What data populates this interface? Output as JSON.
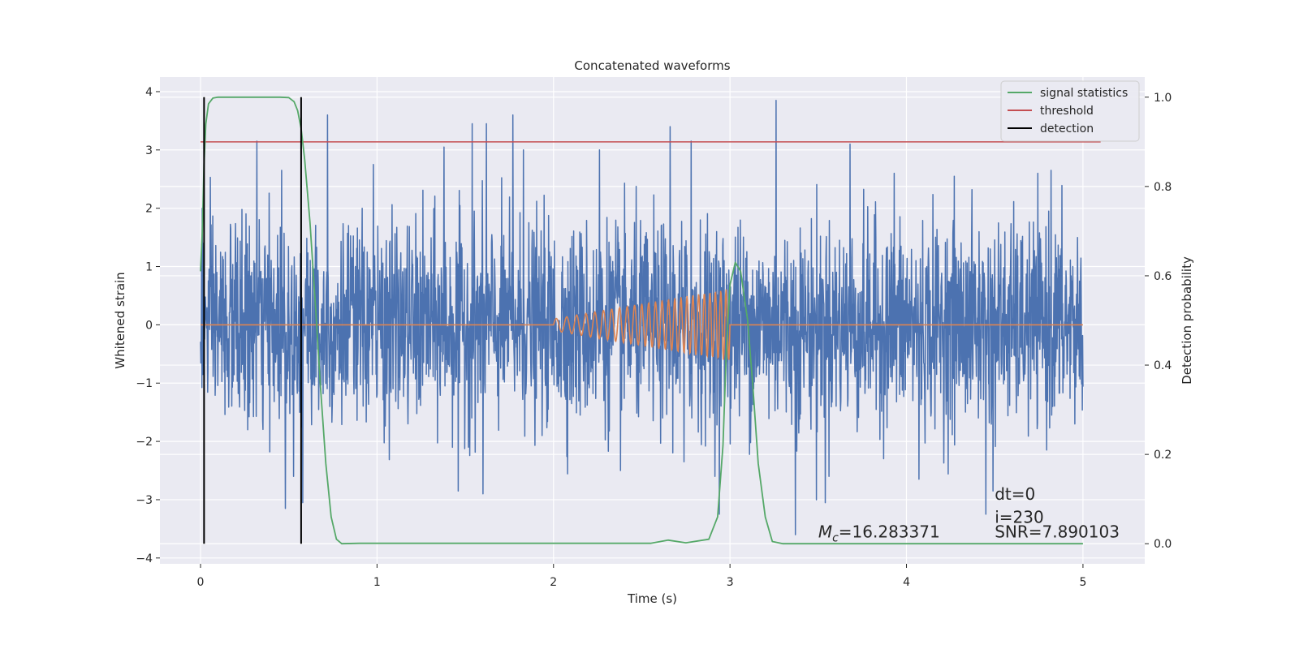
{
  "chart_data": {
    "type": "line",
    "title": "Concatenated waveforms",
    "xlabel": "Time (s)",
    "ylabel": "Whitened strain",
    "y2label": "Detection probability",
    "xlim": [
      -0.23,
      5.35
    ],
    "ylim": [
      -4.1,
      4.25
    ],
    "y2lim": [
      -0.045,
      1.045
    ],
    "x_ticks": [
      0,
      1,
      2,
      3,
      4,
      5
    ],
    "x_tick_labels": [
      "0",
      "1",
      "2",
      "3",
      "4",
      "5"
    ],
    "y_ticks": [
      4,
      3,
      2,
      1,
      0,
      -1,
      -2,
      -3,
      -4
    ],
    "y_tick_labels": [
      "4",
      "3",
      "2",
      "1",
      "0",
      "−1",
      "−2",
      "−3",
      "−4"
    ],
    "y2_ticks": [
      1.0,
      0.8,
      0.6,
      0.4,
      0.2,
      0.0
    ],
    "y2_tick_labels": [
      "1.0",
      "0.8",
      "0.6",
      "0.4",
      "0.2",
      "0.0"
    ],
    "grid": true,
    "legend_position": "top-right",
    "legend": [
      {
        "label": "signal statistics",
        "color": "#55a868"
      },
      {
        "label": "threshold",
        "color": "#c44e52"
      },
      {
        "label": "detection",
        "color": "#000000"
      }
    ],
    "series": [
      {
        "key": "strain",
        "axis": "left",
        "color": "#4c72b0",
        "x_range": [
          0,
          5
        ],
        "noise_sigma": 0.85,
        "sample_count": 2600,
        "spike_points": [
          [
            0.01,
            2.0
          ],
          [
            0.32,
            3.15
          ],
          [
            0.46,
            2.65
          ],
          [
            0.48,
            -3.15
          ],
          [
            0.72,
            3.6
          ],
          [
            0.98,
            2.75
          ],
          [
            0.58,
            -3.05
          ],
          [
            1.38,
            3.05
          ],
          [
            1.54,
            3.45
          ],
          [
            1.62,
            3.45
          ],
          [
            1.77,
            3.6
          ],
          [
            1.83,
            3.0
          ],
          [
            1.46,
            -2.85
          ],
          [
            1.6,
            -2.9
          ],
          [
            2.26,
            3.0
          ],
          [
            2.66,
            3.4
          ],
          [
            2.78,
            3.15
          ],
          [
            2.38,
            -2.5
          ],
          [
            2.74,
            -2.35
          ],
          [
            3.26,
            3.85
          ],
          [
            3.37,
            -3.6
          ],
          [
            3.49,
            -3.0
          ],
          [
            3.54,
            -3.05
          ],
          [
            3.68,
            3.1
          ],
          [
            3.93,
            2.6
          ],
          [
            4.07,
            -2.65
          ],
          [
            4.27,
            2.55
          ],
          [
            4.45,
            -3.25
          ],
          [
            4.49,
            -2.85
          ],
          [
            4.82,
            2.65
          ],
          [
            2.94,
            -3.25
          ]
        ]
      },
      {
        "key": "injected",
        "axis": "left",
        "color": "#dd8452",
        "x_range": [
          0,
          5
        ],
        "chirp_start": 2.0,
        "chirp_end": 3.0,
        "amp_start": 0.1,
        "amp_end": 0.62,
        "freq_start": 16,
        "freq_end": 34
      },
      {
        "name": "signal statistics",
        "key": "prob",
        "axis": "right",
        "color": "#55a868",
        "points": [
          [
            0.0,
            0.61
          ],
          [
            0.01,
            0.7
          ],
          [
            0.02,
            0.85
          ],
          [
            0.03,
            0.94
          ],
          [
            0.045,
            0.985
          ],
          [
            0.07,
            0.998
          ],
          [
            0.1,
            1.0
          ],
          [
            0.45,
            1.0
          ],
          [
            0.5,
            0.999
          ],
          [
            0.53,
            0.99
          ],
          [
            0.55,
            0.97
          ],
          [
            0.57,
            0.93
          ],
          [
            0.59,
            0.86
          ],
          [
            0.62,
            0.72
          ],
          [
            0.65,
            0.54
          ],
          [
            0.68,
            0.35
          ],
          [
            0.71,
            0.18
          ],
          [
            0.74,
            0.06
          ],
          [
            0.77,
            0.01
          ],
          [
            0.8,
            0.0
          ],
          [
            0.9,
            0.001
          ],
          [
            2.55,
            0.001
          ],
          [
            2.65,
            0.008
          ],
          [
            2.75,
            0.002
          ],
          [
            2.88,
            0.01
          ],
          [
            2.93,
            0.06
          ],
          [
            2.96,
            0.22
          ],
          [
            2.98,
            0.44
          ],
          [
            3.0,
            0.58
          ],
          [
            3.03,
            0.63
          ],
          [
            3.06,
            0.61
          ],
          [
            3.1,
            0.5
          ],
          [
            3.13,
            0.35
          ],
          [
            3.16,
            0.18
          ],
          [
            3.2,
            0.06
          ],
          [
            3.24,
            0.005
          ],
          [
            3.3,
            0.0
          ],
          [
            5.0,
            0.0
          ]
        ]
      },
      {
        "name": "threshold",
        "key": "threshold",
        "axis": "right",
        "color": "#c44e52",
        "points": [
          [
            0.0,
            0.9
          ],
          [
            5.1,
            0.9
          ]
        ]
      }
    ],
    "detections": {
      "color": "#000000",
      "x": [
        0.02,
        0.57
      ],
      "y2_range": [
        0.0,
        1.0
      ]
    },
    "annotations": [
      {
        "math_base": "M",
        "math_sub": "c",
        "text": "=16.283371",
        "x": 3.5,
        "y": -3.55
      },
      {
        "text": "dt=0",
        "x": 4.5,
        "y": -2.9
      },
      {
        "text": "i=230",
        "x": 4.5,
        "y": -3.3
      },
      {
        "text": "SNR=7.890103",
        "x": 4.5,
        "y": -3.55
      }
    ]
  },
  "style": {
    "background": "#eaeaf2",
    "grid_color": "#ffffff",
    "tick_color": "#262626"
  }
}
